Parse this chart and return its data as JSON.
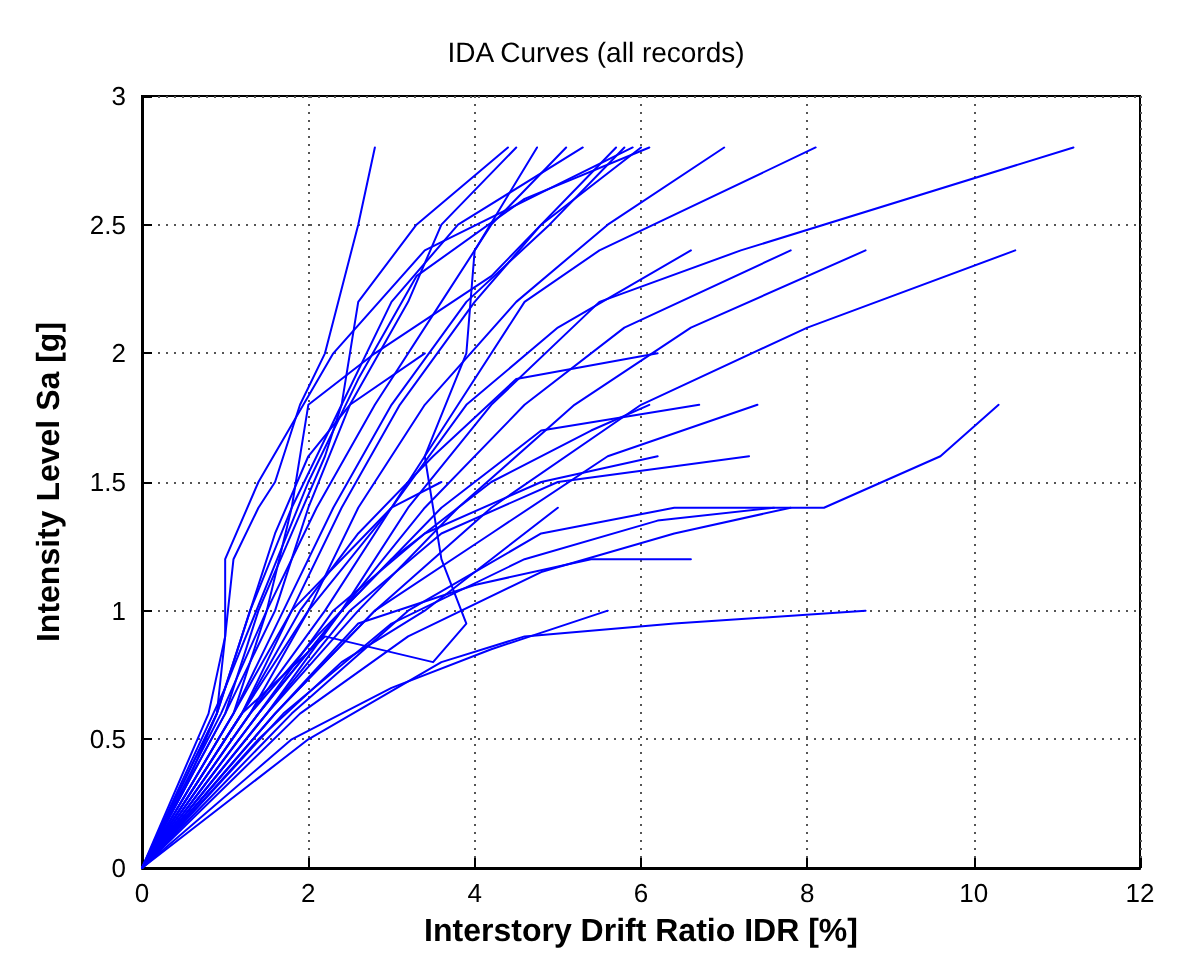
{
  "chart_data": {
    "type": "line",
    "title": "IDA Curves (all records)",
    "xlabel": "Interstory Drift Ratio IDR [%]",
    "ylabel": "Intensity Level Sa [g]",
    "xlim": [
      0,
      12
    ],
    "xticks": [
      0,
      2,
      4,
      6,
      8,
      10,
      12
    ],
    "ylim": [
      0,
      3
    ],
    "yticks": [
      0,
      0.5,
      1,
      1.5,
      2,
      2.5,
      3
    ],
    "grid": true,
    "marker": "none",
    "line_style": "solid",
    "series": [
      {
        "color": "#0000ff",
        "x": [
          0,
          0.5,
          0.9,
          1.0,
          1.1,
          1.4,
          1.6,
          1.9,
          2.2,
          2.6,
          2.8
        ],
        "values": [
          0,
          0.3,
          0.6,
          0.9,
          1.2,
          1.4,
          1.5,
          1.8,
          2.0,
          2.5,
          2.8
        ]
      },
      {
        "color": "#0000ff",
        "x": [
          0,
          0.8,
          1.0,
          1.0,
          1.4,
          2.3,
          3.4,
          5.9
        ],
        "values": [
          0,
          0.6,
          0.9,
          1.2,
          1.5,
          2.0,
          2.4,
          2.8
        ]
      },
      {
        "color": "#0000ff",
        "x": [
          0,
          1.0,
          1.6,
          2.0,
          2.5,
          3.2,
          3.6,
          4.5
        ],
        "values": [
          0,
          0.6,
          1.0,
          1.4,
          1.8,
          2.2,
          2.5,
          2.8
        ]
      },
      {
        "color": "#0000ff",
        "x": [
          0,
          1.2,
          2.2,
          3.5,
          3.9,
          3.6,
          3.4,
          3.9,
          4.0,
          4.75
        ],
        "values": [
          0,
          0.6,
          0.9,
          0.8,
          0.95,
          1.2,
          1.6,
          2.0,
          2.4,
          2.8
        ]
      },
      {
        "color": "#0000ff",
        "x": [
          0,
          0.95,
          1.5,
          2.1,
          2.8,
          3.6,
          4.2,
          5.1
        ],
        "values": [
          0,
          0.6,
          1.0,
          1.4,
          1.8,
          2.2,
          2.5,
          2.8
        ]
      },
      {
        "color": "#0000ff",
        "x": [
          0,
          1.2,
          1.8,
          2.4,
          3.1,
          4.0,
          4.8,
          6.0
        ],
        "values": [
          0,
          0.6,
          1.0,
          1.4,
          1.8,
          2.2,
          2.5,
          2.8
        ]
      },
      {
        "color": "#0000ff",
        "x": [
          0,
          1.1,
          1.7,
          2.3,
          3.0,
          3.9,
          4.9,
          5.8
        ],
        "values": [
          0,
          0.6,
          1.0,
          1.4,
          1.8,
          2.2,
          2.5,
          2.8
        ]
      },
      {
        "color": "#0000ff",
        "x": [
          0,
          1.3,
          2.0,
          2.6,
          3.4,
          4.5,
          5.6,
          7.0
        ],
        "values": [
          0,
          0.6,
          1.0,
          1.4,
          1.8,
          2.2,
          2.5,
          2.8
        ]
      },
      {
        "color": "#0000ff",
        "x": [
          0,
          1.2,
          2.0,
          3.0,
          3.8,
          4.6,
          5.5,
          8.1
        ],
        "values": [
          0,
          0.6,
          1.0,
          1.4,
          1.8,
          2.2,
          2.4,
          2.8
        ]
      },
      {
        "color": "#0000ff",
        "x": [
          0,
          1.5,
          2.4,
          3.2,
          4.2,
          5.5,
          7.2,
          11.2
        ],
        "values": [
          0,
          0.6,
          1.0,
          1.4,
          1.8,
          2.2,
          2.4,
          2.8
        ]
      },
      {
        "color": "#0000ff",
        "x": [
          0,
          1.3,
          2.2,
          3.0,
          3.9,
          5.0,
          6.6
        ],
        "values": [
          0,
          0.6,
          1.0,
          1.4,
          1.8,
          2.1,
          2.4
        ]
      },
      {
        "color": "#0000ff",
        "x": [
          0,
          1.4,
          2.4,
          3.4,
          4.6,
          5.8,
          7.8
        ],
        "values": [
          0,
          0.6,
          1.0,
          1.4,
          1.8,
          2.1,
          2.4
        ]
      },
      {
        "color": "#0000ff",
        "x": [
          0,
          1.5,
          2.6,
          3.8,
          5.2,
          6.6,
          8.7
        ],
        "values": [
          0,
          0.6,
          1.0,
          1.4,
          1.8,
          2.1,
          2.4
        ]
      },
      {
        "color": "#0000ff",
        "x": [
          0,
          1.6,
          2.8,
          4.2,
          6.0,
          8.0,
          10.5
        ],
        "values": [
          0,
          0.6,
          1.0,
          1.4,
          1.8,
          2.1,
          2.4
        ]
      },
      {
        "color": "#0000ff",
        "x": [
          0,
          1.4,
          2.4,
          3.6,
          4.8,
          6.7
        ],
        "values": [
          0,
          0.6,
          1.0,
          1.4,
          1.7,
          1.8
        ]
      },
      {
        "color": "#0000ff",
        "x": [
          0,
          1.6,
          2.8,
          4.2,
          5.6,
          7.4
        ],
        "values": [
          0,
          0.6,
          1.0,
          1.3,
          1.6,
          1.8
        ]
      },
      {
        "color": "#0000ff",
        "x": [
          0,
          1.8,
          3.2,
          4.8,
          6.4,
          8.2,
          9.6,
          10.3
        ],
        "values": [
          0,
          0.6,
          1.0,
          1.3,
          1.4,
          1.4,
          1.6,
          1.8
        ]
      },
      {
        "color": "#0000ff",
        "x": [
          0,
          1.7,
          3.0,
          4.6,
          6.2,
          7.6
        ],
        "values": [
          0,
          0.6,
          0.95,
          1.2,
          1.35,
          1.4
        ]
      },
      {
        "color": "#0000ff",
        "x": [
          0,
          1.9,
          3.2,
          4.8,
          6.4,
          7.8
        ],
        "values": [
          0,
          0.6,
          0.9,
          1.15,
          1.3,
          1.4
        ]
      },
      {
        "color": "#0000ff",
        "x": [
          0,
          2.0,
          3.6,
          4.6,
          6.4,
          8.7
        ],
        "values": [
          0,
          0.5,
          0.8,
          0.9,
          0.95,
          1.0
        ]
      },
      {
        "color": "#0000ff",
        "x": [
          0,
          1.8,
          3.0,
          4.2,
          5.6
        ],
        "values": [
          0,
          0.5,
          0.7,
          0.85,
          1.0
        ]
      },
      {
        "color": "#0000ff",
        "x": [
          0,
          1.4,
          2.3,
          3.4,
          4.8,
          6.2
        ],
        "values": [
          0,
          0.6,
          1.0,
          1.3,
          1.5,
          1.6
        ]
      },
      {
        "color": "#0000ff",
        "x": [
          0,
          1.5,
          2.5,
          3.6,
          5.0,
          7.3
        ],
        "values": [
          0,
          0.6,
          1.0,
          1.3,
          1.5,
          1.6
        ]
      },
      {
        "color": "#0000ff",
        "x": [
          0,
          1.6,
          2.6,
          4.0,
          5.4,
          6.6
        ],
        "values": [
          0,
          0.6,
          0.95,
          1.1,
          1.2,
          1.2
        ]
      },
      {
        "color": "#0000ff",
        "x": [
          0,
          0.9,
          1.3,
          1.8,
          2.4,
          3.0,
          3.8,
          5.3
        ],
        "values": [
          0,
          0.6,
          1.0,
          1.4,
          1.8,
          2.2,
          2.5,
          2.8
        ]
      },
      {
        "color": "#0000ff",
        "x": [
          0,
          1.0,
          1.5,
          2.0,
          2.6,
          3.3,
          4.6,
          6.1
        ],
        "values": [
          0,
          0.7,
          1.1,
          1.5,
          1.9,
          2.3,
          2.6,
          2.8
        ]
      },
      {
        "color": "#0000ff",
        "x": [
          0,
          1.1,
          1.5,
          1.8,
          2.0,
          2.8,
          4.2,
          5.7
        ],
        "values": [
          0,
          0.6,
          1.0,
          1.4,
          1.8,
          2.0,
          2.3,
          2.8
        ]
      },
      {
        "color": "#0000ff",
        "x": [
          0,
          1.2,
          1.9,
          2.6,
          3.5,
          4.5,
          6.2
        ],
        "values": [
          0,
          0.6,
          1.0,
          1.3,
          1.6,
          1.9,
          2.0
        ]
      },
      {
        "color": "#0000ff",
        "x": [
          0,
          1.3,
          2.1,
          3.0,
          4.2,
          5.4,
          6.1
        ],
        "values": [
          0,
          0.6,
          0.9,
          1.2,
          1.5,
          1.7,
          1.8
        ]
      },
      {
        "color": "#0000ff",
        "x": [
          0,
          0.9,
          1.2,
          1.6,
          2.0,
          2.5,
          3.4
        ],
        "values": [
          0,
          0.6,
          0.9,
          1.3,
          1.6,
          1.8,
          2.0
        ]
      },
      {
        "color": "#0000ff",
        "x": [
          0,
          1.0,
          1.4,
          1.8,
          2.2,
          2.4,
          2.6,
          3.3,
          4.4
        ],
        "values": [
          0,
          0.6,
          1.0,
          1.3,
          1.6,
          1.8,
          2.2,
          2.5,
          2.8
        ]
      },
      {
        "color": "#0000ff",
        "x": [
          0,
          1.4,
          2.4,
          3.4,
          4.2,
          5.0
        ],
        "values": [
          0,
          0.5,
          0.8,
          1.0,
          1.2,
          1.4
        ]
      },
      {
        "color": "#0000ff",
        "x": [
          0,
          1.1,
          1.8,
          2.4,
          3.0,
          3.6
        ],
        "values": [
          0,
          0.6,
          1.0,
          1.2,
          1.4,
          1.5
        ]
      }
    ]
  }
}
